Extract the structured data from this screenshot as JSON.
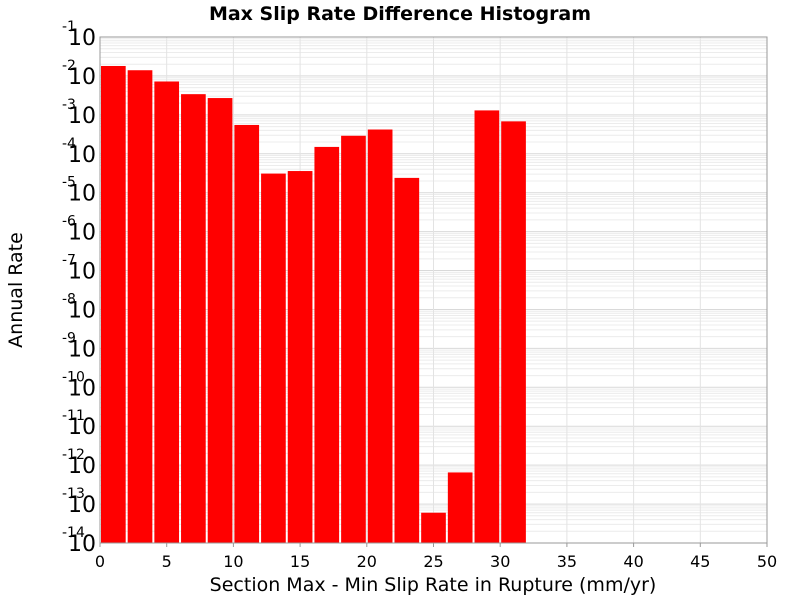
{
  "chart_data": {
    "type": "bar",
    "title": "Max Slip Rate Difference Histogram",
    "xlabel": "Section Max - Min Slip Rate in Rupture (mm/yr)",
    "ylabel": "Annual Rate",
    "xlim": [
      0,
      50
    ],
    "ylim": [
      1e-14,
      0.1
    ],
    "yscale": "log",
    "grid": true,
    "bar_color": "#ff0000",
    "bin_width": 2,
    "xticks": [
      0,
      5,
      10,
      15,
      20,
      25,
      30,
      35,
      40,
      45,
      50
    ],
    "yticks": [
      {
        "value": 1e-14,
        "base": "10",
        "exp": "-14"
      },
      {
        "value": 1e-13,
        "base": "10",
        "exp": "-13"
      },
      {
        "value": 1e-12,
        "base": "10",
        "exp": "-12"
      },
      {
        "value": 1e-11,
        "base": "10",
        "exp": "-11"
      },
      {
        "value": 1e-10,
        "base": "10",
        "exp": "-10"
      },
      {
        "value": 1e-09,
        "base": "10",
        "exp": "-9"
      },
      {
        "value": 1e-08,
        "base": "10",
        "exp": "-8"
      },
      {
        "value": 1e-07,
        "base": "10",
        "exp": "-7"
      },
      {
        "value": 1e-06,
        "base": "10",
        "exp": "-6"
      },
      {
        "value": 1e-05,
        "base": "10",
        "exp": "-5"
      },
      {
        "value": 0.0001,
        "base": "10",
        "exp": "-4"
      },
      {
        "value": 0.001,
        "base": "10",
        "exp": "-3"
      },
      {
        "value": 0.01,
        "base": "10",
        "exp": "-2"
      },
      {
        "value": 0.1,
        "base": "10",
        "exp": "-1"
      }
    ],
    "bins": [
      {
        "x_start": 0,
        "x_end": 2,
        "value": 0.018
      },
      {
        "x_start": 2,
        "x_end": 4,
        "value": 0.014
      },
      {
        "x_start": 4,
        "x_end": 6,
        "value": 0.0072
      },
      {
        "x_start": 6,
        "x_end": 8,
        "value": 0.0034
      },
      {
        "x_start": 8,
        "x_end": 10,
        "value": 0.0027
      },
      {
        "x_start": 10,
        "x_end": 12,
        "value": 0.00055
      },
      {
        "x_start": 12,
        "x_end": 14,
        "value": 3.1e-05
      },
      {
        "x_start": 14,
        "x_end": 16,
        "value": 3.6e-05
      },
      {
        "x_start": 16,
        "x_end": 18,
        "value": 0.00015
      },
      {
        "x_start": 18,
        "x_end": 20,
        "value": 0.00029
      },
      {
        "x_start": 20,
        "x_end": 22,
        "value": 0.00042
      },
      {
        "x_start": 22,
        "x_end": 24,
        "value": 2.4e-05
      },
      {
        "x_start": 24,
        "x_end": 26,
        "value": 6e-14
      },
      {
        "x_start": 26,
        "x_end": 28,
        "value": 6.5e-13
      },
      {
        "x_start": 28,
        "x_end": 30,
        "value": 0.0013
      },
      {
        "x_start": 30,
        "x_end": 32,
        "value": 0.00068
      }
    ]
  }
}
